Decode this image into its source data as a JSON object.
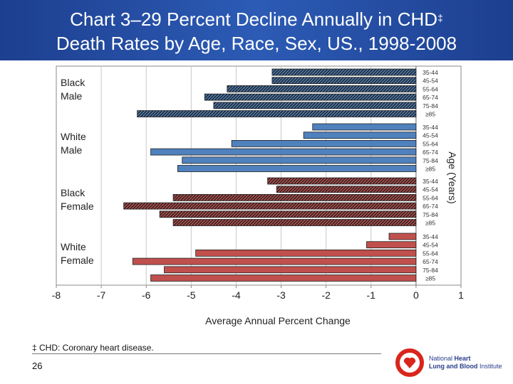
{
  "title": {
    "line1": "Chart 3–29 Percent Decline Annually in CHD",
    "mark": "‡",
    "line2": "Death Rates by Age, Race, Sex, US., 1998-2008"
  },
  "chart_data": {
    "type": "bar",
    "orientation": "horizontal",
    "xlabel": "Average Annual Percent Change",
    "ylabel": "Age (Years)",
    "xlim": [
      -8,
      1
    ],
    "xticks": [
      "-8",
      "-7",
      "-6",
      "-5",
      "-4",
      "-3",
      "-2",
      "-1",
      "0",
      "1"
    ],
    "grid": true,
    "categories": [
      "35-44",
      "45-54",
      "55-64",
      "65-74",
      "75-84",
      "≥85"
    ],
    "series": [
      {
        "name": "Black Male",
        "color": "#4f81bd",
        "hatched": true,
        "values": [
          -3.2,
          -3.2,
          -4.2,
          -4.7,
          -4.5,
          -6.2
        ]
      },
      {
        "name": "White Male",
        "color": "#4f81bd",
        "hatched": false,
        "values": [
          -2.3,
          -2.5,
          -4.1,
          -5.9,
          -5.2,
          -5.3
        ]
      },
      {
        "name": "Black Female",
        "color": "#c0504d",
        "hatched": true,
        "values": [
          -3.3,
          -3.1,
          -5.4,
          -6.5,
          -5.7,
          -5.4
        ]
      },
      {
        "name": "White Female",
        "color": "#c0504d",
        "hatched": false,
        "values": [
          -0.6,
          -1.1,
          -4.9,
          -6.3,
          -5.6,
          -5.9
        ]
      }
    ]
  },
  "groups": [
    {
      "line1": "Black",
      "line2": "Male"
    },
    {
      "line1": "White",
      "line2": "Male"
    },
    {
      "line1": "Black",
      "line2": "Female"
    },
    {
      "line1": "White",
      "line2": "Female"
    }
  ],
  "footnote": "‡ CHD: Coronary heart disease.",
  "page_number": "26",
  "logo": {
    "line1a": "National ",
    "line1b": "Heart",
    "line2a": "Lung and Blood ",
    "line2b": "Institute"
  }
}
